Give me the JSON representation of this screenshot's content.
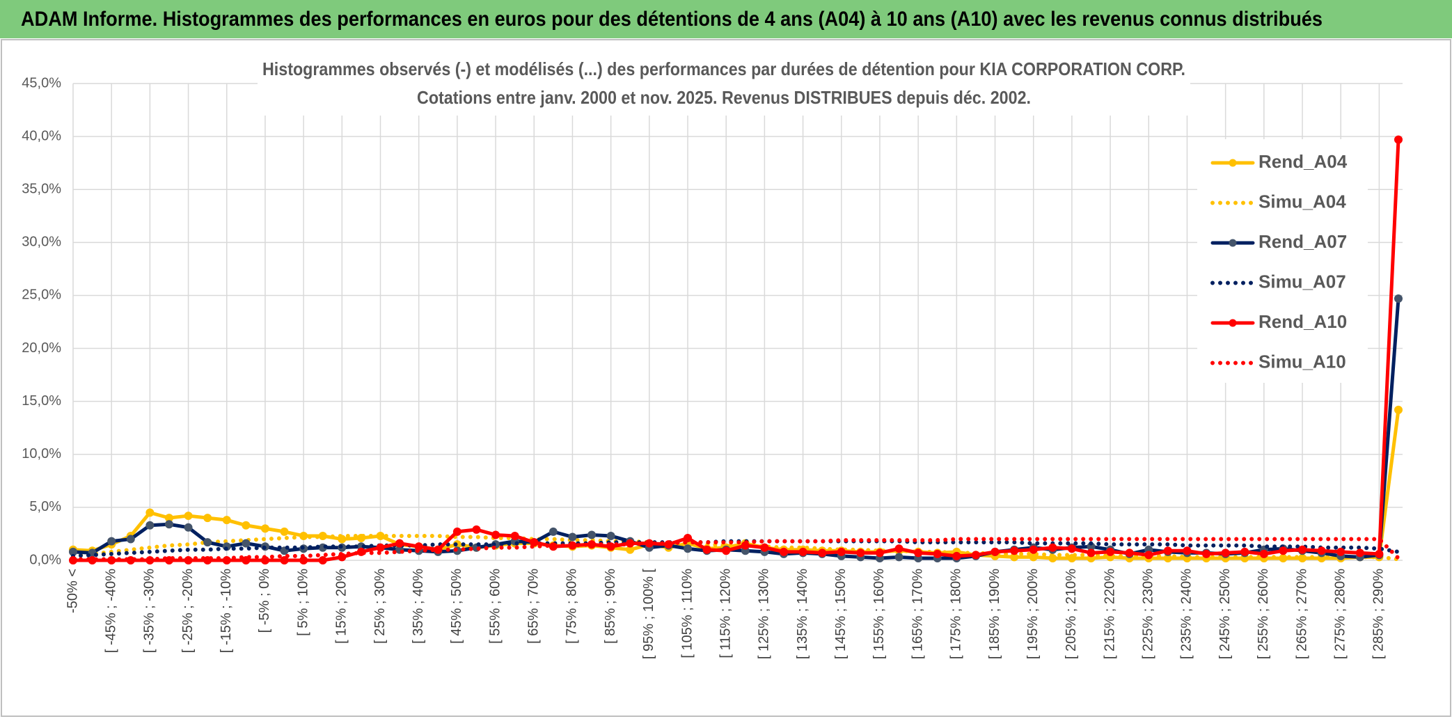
{
  "header": {
    "title": "ADAM Informe. Histogrammes des performances en euros pour des détentions de 4 ans (A04) à 10 ans (A10) avec les revenus connus distribués"
  },
  "chart_data": {
    "type": "line",
    "title": "Histogrammes observés (-) et modélisés (...) des performances par durées de détention pour KIA CORPORATION CORP.",
    "subtitle": "Cotations entre janv. 2000 et nov. 2025. Revenus DISTRIBUES depuis déc. 2002.",
    "categories": [
      "-50% <",
      null,
      "[ -45% ; -40%",
      null,
      "[ -35% ; -30%",
      null,
      "[ -25% ; -20%",
      null,
      "[ -15% ; -10%",
      null,
      "[ -5% ; 0%",
      null,
      "[ 5% ; 10%",
      null,
      "[ 15% ; 20%",
      null,
      "[ 25% ; 30%",
      null,
      "[ 35% ; 40%",
      null,
      "[ 45% ; 50%",
      null,
      "[ 55% ; 60%",
      null,
      "[ 65% ; 70%",
      null,
      "[ 75% ; 80%",
      null,
      "[ 85% ; 90%",
      null,
      "[ 95% ; 100% [",
      null,
      "[ 105% ; 110%",
      null,
      "[ 115% ; 120%",
      null,
      "[ 125% ; 130%",
      null,
      "[ 135% ; 140%",
      null,
      "[ 145% ; 150%",
      null,
      "[ 155% ; 160%",
      null,
      "[ 165% ; 170%",
      null,
      "[ 175% ; 180%",
      null,
      "[ 185% ; 190%",
      null,
      "[ 195% ; 200%",
      null,
      "[ 205% ; 210%",
      null,
      "[ 215% ; 220%",
      null,
      "[ 225% ; 230%",
      null,
      "[ 235% ; 240%",
      null,
      "[ 245% ; 250%",
      null,
      "[ 255% ; 260%",
      null,
      "[ 265% ; 270%",
      null,
      "[ 275% ; 280%",
      null,
      "[ 285% ; 290%",
      null
    ],
    "series": [
      {
        "name": "Rend_A04",
        "color": "#ffc000",
        "style": "solid",
        "marker_color": "#ffc000",
        "values": [
          1.0,
          0.9,
          1.5,
          2.3,
          4.5,
          4.0,
          4.2,
          4.0,
          3.8,
          3.3,
          3.0,
          2.7,
          2.3,
          2.3,
          2.0,
          2.1,
          2.3,
          1.5,
          1.3,
          1.0,
          1.5,
          1.2,
          1.4,
          1.6,
          1.6,
          1.4,
          1.3,
          1.4,
          1.2,
          1.0,
          1.5,
          1.2,
          1.6,
          1.1,
          1.2,
          1.6,
          1.2,
          1.0,
          1.0,
          0.9,
          0.9,
          0.8,
          0.8,
          0.9,
          0.8,
          0.7,
          0.8,
          0.5,
          0.4,
          0.3,
          0.3,
          0.2,
          0.2,
          0.2,
          0.3,
          0.2,
          0.2,
          0.2,
          0.2,
          0.2,
          0.2,
          0.2,
          0.2,
          0.2,
          0.2,
          0.2,
          0.2,
          0.3,
          0.3,
          14.2
        ]
      },
      {
        "name": "Simu_A04",
        "color": "#ffc000",
        "style": "dotted",
        "values": [
          0.5,
          0.6,
          0.8,
          1.0,
          1.2,
          1.4,
          1.5,
          1.7,
          1.8,
          1.9,
          2.0,
          2.1,
          2.2,
          2.2,
          2.3,
          2.3,
          2.3,
          2.3,
          2.3,
          2.3,
          2.2,
          2.2,
          2.1,
          2.1,
          2.0,
          2.0,
          1.9,
          1.9,
          1.8,
          1.8,
          1.7,
          1.6,
          1.6,
          1.5,
          1.4,
          1.4,
          1.3,
          1.2,
          1.2,
          1.1,
          1.0,
          1.0,
          0.9,
          0.9,
          0.8,
          0.8,
          0.7,
          0.7,
          0.6,
          0.6,
          0.6,
          0.5,
          0.5,
          0.5,
          0.4,
          0.4,
          0.4,
          0.4,
          0.3,
          0.3,
          0.3,
          0.3,
          0.3,
          0.3,
          0.3,
          0.3,
          0.3,
          0.3,
          0.3,
          0.1
        ]
      },
      {
        "name": "Rend_A07",
        "color": "#002060",
        "style": "solid",
        "marker_color": "#44546a",
        "values": [
          0.8,
          0.7,
          1.8,
          2.0,
          3.3,
          3.4,
          3.1,
          1.7,
          1.3,
          1.6,
          1.3,
          0.9,
          1.1,
          1.2,
          1.2,
          1.3,
          1.2,
          1.0,
          0.9,
          0.8,
          0.9,
          1.2,
          1.5,
          1.8,
          1.7,
          2.7,
          2.2,
          2.4,
          2.3,
          1.8,
          1.2,
          1.4,
          1.1,
          0.9,
          1.0,
          0.9,
          0.8,
          0.6,
          0.7,
          0.6,
          0.4,
          0.3,
          0.2,
          0.3,
          0.2,
          0.2,
          0.2,
          0.4,
          0.8,
          1.0,
          1.2,
          1.0,
          1.2,
          1.3,
          1.0,
          0.6,
          1.0,
          0.8,
          0.7,
          0.7,
          0.6,
          0.7,
          1.0,
          1.1,
          0.9,
          0.7,
          0.4,
          0.3,
          0.5,
          24.7
        ]
      },
      {
        "name": "Simu_A07",
        "color": "#002060",
        "style": "dotted",
        "values": [
          0.4,
          0.5,
          0.6,
          0.7,
          0.8,
          0.9,
          1.0,
          1.0,
          1.1,
          1.1,
          1.2,
          1.2,
          1.2,
          1.3,
          1.3,
          1.3,
          1.4,
          1.4,
          1.4,
          1.5,
          1.5,
          1.5,
          1.5,
          1.6,
          1.6,
          1.6,
          1.6,
          1.6,
          1.7,
          1.7,
          1.7,
          1.7,
          1.7,
          1.7,
          1.8,
          1.8,
          1.8,
          1.8,
          1.8,
          1.8,
          1.8,
          1.8,
          1.8,
          1.8,
          1.7,
          1.7,
          1.7,
          1.7,
          1.7,
          1.7,
          1.6,
          1.6,
          1.6,
          1.6,
          1.5,
          1.5,
          1.5,
          1.5,
          1.4,
          1.4,
          1.4,
          1.4,
          1.3,
          1.3,
          1.3,
          1.2,
          1.2,
          1.2,
          1.1,
          0.8
        ]
      },
      {
        "name": "Rend_A10",
        "color": "#ff0000",
        "style": "solid",
        "marker_color": "#ff0000",
        "values": [
          0.0,
          0.0,
          0.0,
          0.0,
          0.0,
          0.0,
          0.0,
          0.0,
          0.0,
          0.0,
          0.0,
          0.0,
          0.0,
          0.0,
          0.3,
          0.8,
          1.2,
          1.6,
          1.3,
          1.0,
          2.7,
          2.9,
          2.4,
          2.3,
          1.7,
          1.3,
          1.4,
          1.5,
          1.3,
          1.6,
          1.6,
          1.5,
          2.1,
          1.0,
          0.9,
          1.4,
          1.2,
          0.8,
          0.8,
          0.7,
          0.8,
          0.7,
          0.7,
          1.1,
          0.7,
          0.6,
          0.4,
          0.5,
          0.8,
          0.9,
          1.0,
          1.2,
          1.1,
          0.7,
          0.8,
          0.7,
          0.5,
          0.9,
          0.9,
          0.6,
          0.7,
          0.8,
          0.6,
          0.9,
          1.0,
          0.9,
          0.8,
          0.7,
          0.6,
          39.7
        ]
      },
      {
        "name": "Simu_A10",
        "color": "#ff0000",
        "style": "dotted",
        "values": [
          0.1,
          0.1,
          0.1,
          0.1,
          0.1,
          0.2,
          0.2,
          0.2,
          0.2,
          0.3,
          0.3,
          0.4,
          0.4,
          0.5,
          0.6,
          0.7,
          0.7,
          0.8,
          0.9,
          1.0,
          1.0,
          1.1,
          1.2,
          1.2,
          1.3,
          1.4,
          1.4,
          1.5,
          1.5,
          1.5,
          1.6,
          1.6,
          1.7,
          1.7,
          1.7,
          1.7,
          1.8,
          1.8,
          1.8,
          1.8,
          1.9,
          1.9,
          1.9,
          1.9,
          1.9,
          1.9,
          2.0,
          2.0,
          2.0,
          2.0,
          2.0,
          2.0,
          2.0,
          2.0,
          2.0,
          2.0,
          2.0,
          2.0,
          2.0,
          2.0,
          2.0,
          2.0,
          2.0,
          2.0,
          2.0,
          2.0,
          2.0,
          2.0,
          2.0,
          0.2
        ]
      }
    ],
    "ylim": [
      0,
      45
    ],
    "yticks": [
      {
        "value": 0,
        "label": "0,0%"
      },
      {
        "value": 5,
        "label": "5,0%"
      },
      {
        "value": 10,
        "label": "10,0%"
      },
      {
        "value": 15,
        "label": "15,0%"
      },
      {
        "value": 20,
        "label": "20,0%"
      },
      {
        "value": 25,
        "label": "25,0%"
      },
      {
        "value": 30,
        "label": "30,0%"
      },
      {
        "value": 35,
        "label": "35,0%"
      },
      {
        "value": 40,
        "label": "40,0%"
      },
      {
        "value": 45,
        "label": "45,0%"
      }
    ],
    "grid": true,
    "legend": "right"
  }
}
